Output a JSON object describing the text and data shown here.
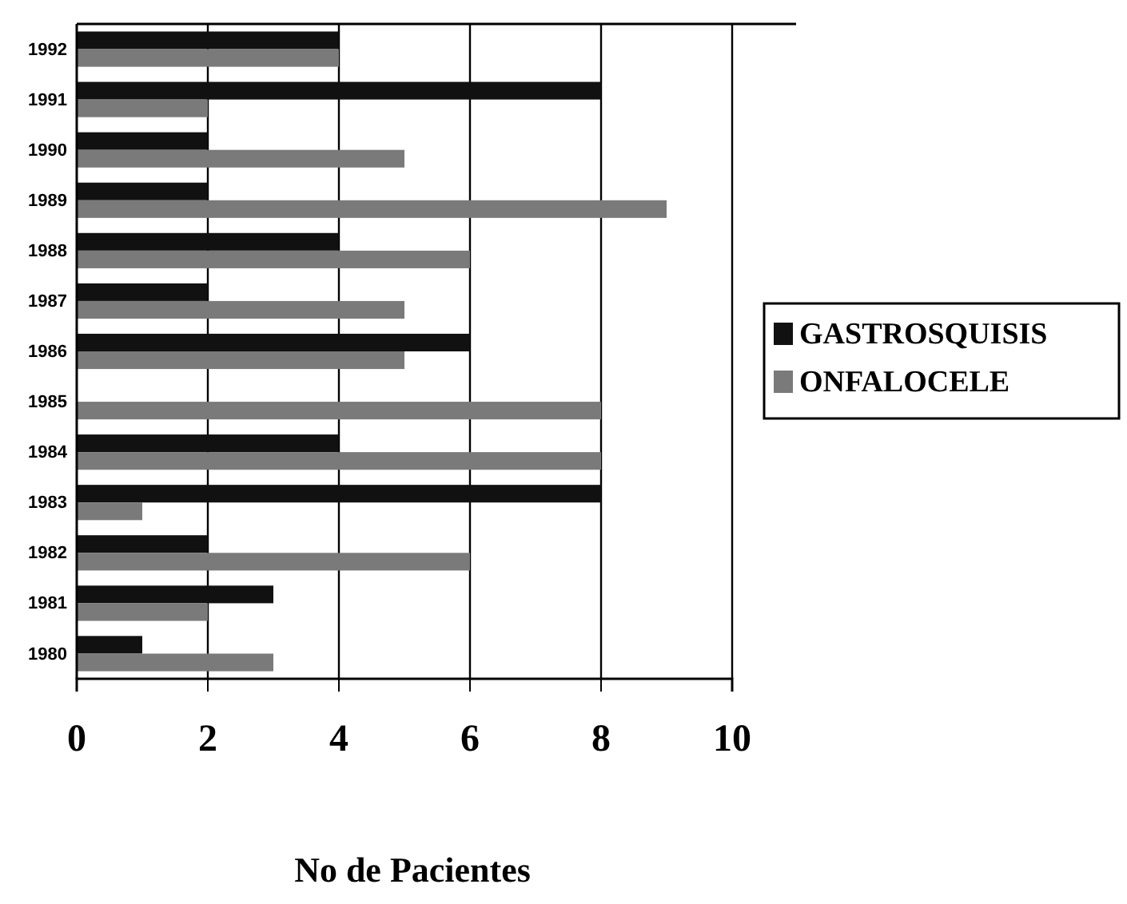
{
  "chart_data": {
    "type": "bar",
    "orientation": "horizontal",
    "xlabel": "No de Pacientes",
    "categories": [
      "1992",
      "1991",
      "1990",
      "1989",
      "1988",
      "1987",
      "1986",
      "1985",
      "1984",
      "1983",
      "1982",
      "1981",
      "1980"
    ],
    "series": [
      {
        "name": "GASTROSQUISIS",
        "color": "#111111",
        "values": [
          4,
          8,
          2,
          2,
          4,
          2,
          6,
          0,
          4,
          8,
          2,
          3,
          1
        ]
      },
      {
        "name": "ONFALOCELE",
        "color": "#7a7a7a",
        "values": [
          4,
          2,
          5,
          9,
          6,
          5,
          5,
          8,
          8,
          1,
          6,
          2,
          3
        ]
      }
    ],
    "xlim": [
      0,
      10
    ],
    "xticks": [
      0,
      2,
      4,
      6,
      8,
      10
    ],
    "grid": "x",
    "legend": "right"
  }
}
